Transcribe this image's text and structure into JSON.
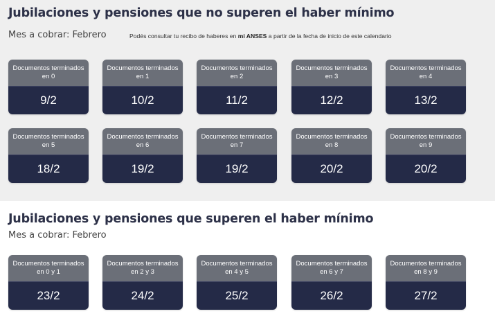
{
  "section1": {
    "title": "Jubilaciones y pensiones que no superen el haber mínimo",
    "month_label": "Mes a cobrar: Febrero",
    "note_prefix": "Podés consultar tu recibo de haberes en ",
    "note_bold": "mi ANSES",
    "note_suffix": " a partir de la fecha de inicio de este calendario",
    "cards": [
      {
        "label": "Documentos terminados en 0",
        "date": "9/2"
      },
      {
        "label": "Documentos terminados en 1",
        "date": "10/2"
      },
      {
        "label": "Documentos terminados en 2",
        "date": "11/2"
      },
      {
        "label": "Documentos terminados en 3",
        "date": "12/2"
      },
      {
        "label": "Documentos terminados en 4",
        "date": "13/2"
      },
      {
        "label": "Documentos terminados en 5",
        "date": "18/2"
      },
      {
        "label": "Documentos terminados en 6",
        "date": "19/2"
      },
      {
        "label": "Documentos terminados en 7",
        "date": "19/2"
      },
      {
        "label": "Documentos terminados en 8",
        "date": "20/2"
      },
      {
        "label": "Documentos terminados en 9",
        "date": "20/2"
      }
    ]
  },
  "section2": {
    "title": "Jubilaciones y pensiones que superen el haber mínimo",
    "month_label": "Mes a cobrar: Febrero",
    "cards": [
      {
        "label": "Documentos terminados en 0 y 1",
        "date": "23/2"
      },
      {
        "label": "Documentos terminados en 2 y 3",
        "date": "24/2"
      },
      {
        "label": "Documentos terminados en 4 y 5",
        "date": "25/2"
      },
      {
        "label": "Documentos terminados en 6 y 7",
        "date": "26/2"
      },
      {
        "label": "Documentos terminados en 8 y 9",
        "date": "27/2"
      }
    ]
  },
  "colors": {
    "card_top": "#6b6f78",
    "card_bottom": "#242a47",
    "title": "#2d3148",
    "top_background": "#efefef"
  }
}
